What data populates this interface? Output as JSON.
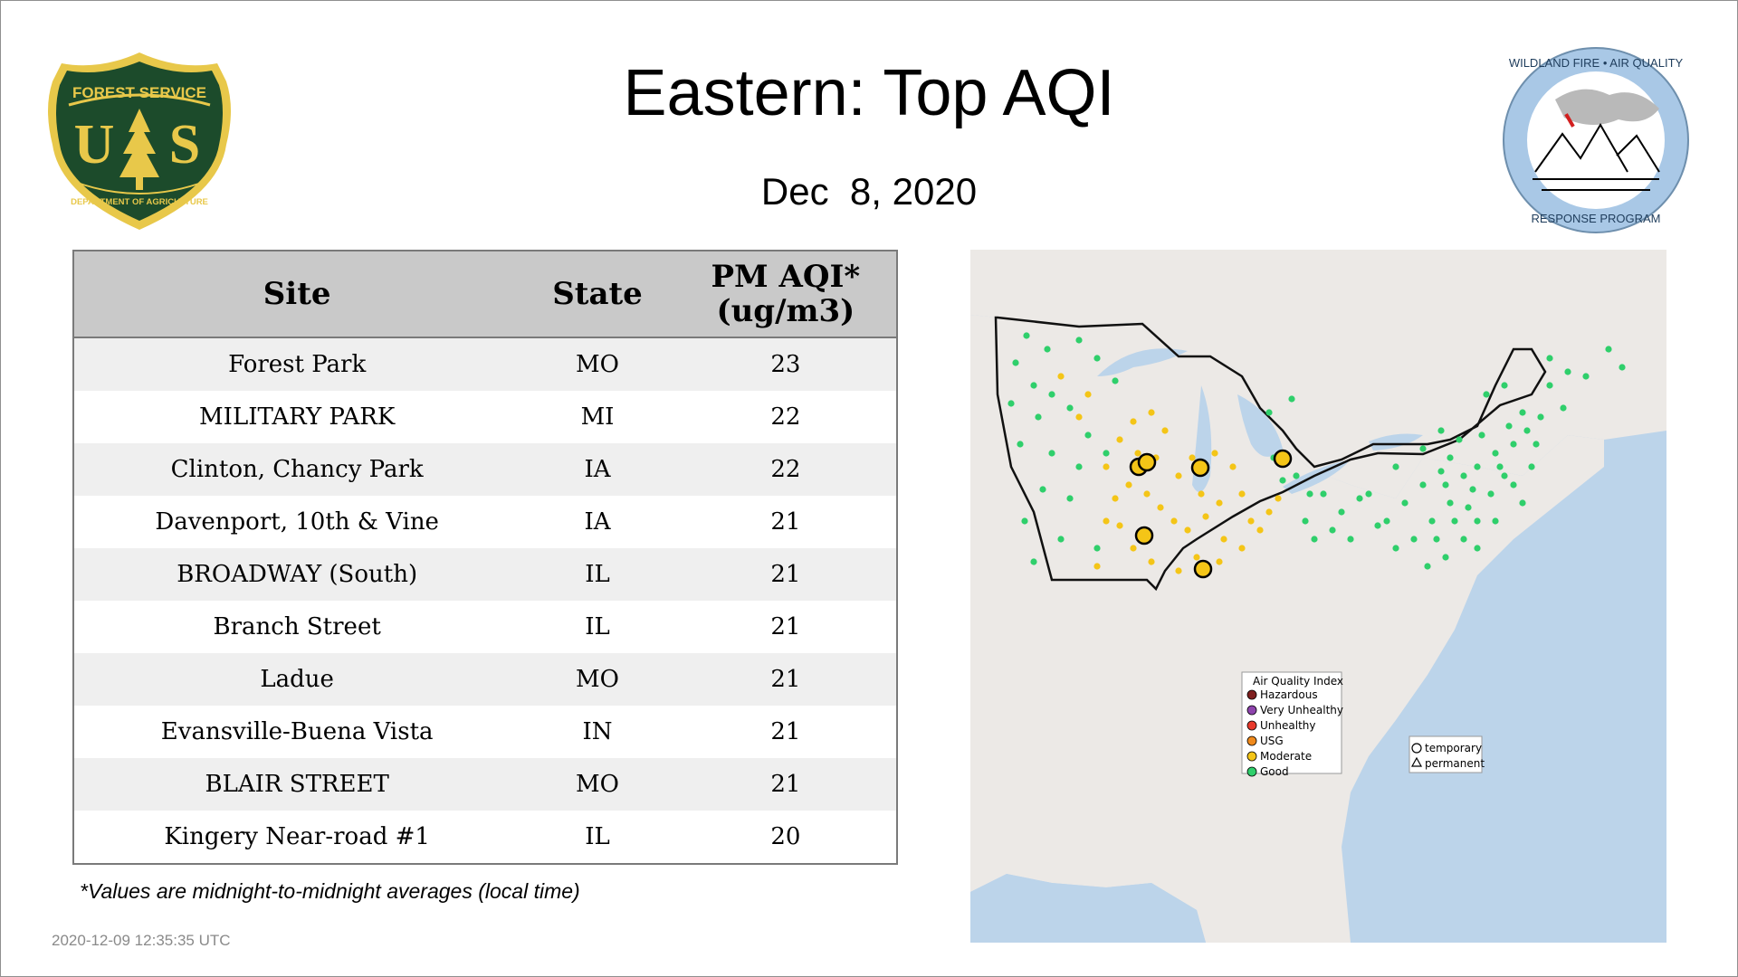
{
  "header": {
    "title": "Eastern: Top AQI",
    "date": "Dec  8, 2020"
  },
  "logos": {
    "left": {
      "icon": "forest-service-shield-icon",
      "arc_text": "FOREST SERVICE",
      "initials_left": "U",
      "initials_right": "S",
      "bottom_text": "DEPARTMENT OF AGRICULTURE",
      "colors": {
        "shield": "#1c4b2b",
        "gold": "#e8c84a"
      }
    },
    "right": {
      "icon": "wildland-fire-air-quality-seal-icon",
      "top_text": "WILDLAND FIRE • AIR QUALITY",
      "bottom_text": "RESPONSE PROGRAM",
      "colors": {
        "ring": "#a9c8e6"
      }
    }
  },
  "table": {
    "headers": {
      "site": "Site",
      "state": "State",
      "aqi_line1": "PM AQI*",
      "aqi_line2": "(ug/m3)"
    },
    "rows": [
      {
        "site": "Forest Park",
        "state": "MO",
        "aqi": "23"
      },
      {
        "site": "MILITARY PARK",
        "state": "MI",
        "aqi": "22"
      },
      {
        "site": "Clinton, Chancy Park",
        "state": "IA",
        "aqi": "22"
      },
      {
        "site": "Davenport, 10th & Vine",
        "state": "IA",
        "aqi": "21"
      },
      {
        "site": "BROADWAY (South)",
        "state": "IL",
        "aqi": "21"
      },
      {
        "site": "Branch Street",
        "state": "IL",
        "aqi": "21"
      },
      {
        "site": "Ladue",
        "state": "MO",
        "aqi": "21"
      },
      {
        "site": "Evansville-Buena Vista",
        "state": "IN",
        "aqi": "21"
      },
      {
        "site": "BLAIR STREET",
        "state": "MO",
        "aqi": "21"
      },
      {
        "site": "Kingery Near-road #1",
        "state": "IL",
        "aqi": "20"
      }
    ]
  },
  "footnote": "*Values are midnight-to-midnight averages (local time)",
  "timestamp": "2020-12-09 12:35:35 UTC",
  "map": {
    "colors": {
      "land": "#ece9e6",
      "water": "#bcd4ea",
      "good": "#2fcf6b",
      "moderate": "#f4c517",
      "unknown": "#b5b5b5"
    },
    "legend": {
      "title": "Air Quality Index",
      "items": [
        {
          "label": "Hazardous",
          "color": "#7e1f1f"
        },
        {
          "label": "Very Unhealthy",
          "color": "#8e44ad"
        },
        {
          "label": "Unhealthy",
          "color": "#e8392c"
        },
        {
          "label": "USG",
          "color": "#f08a1c"
        },
        {
          "label": "Moderate",
          "color": "#f4c517"
        },
        {
          "label": "Good",
          "color": "#2fcf6b"
        }
      ],
      "markers": [
        {
          "label": "temporary",
          "icon": "circle-marker-icon"
        },
        {
          "label": "permanent",
          "icon": "triangle-marker-icon"
        }
      ]
    }
  }
}
